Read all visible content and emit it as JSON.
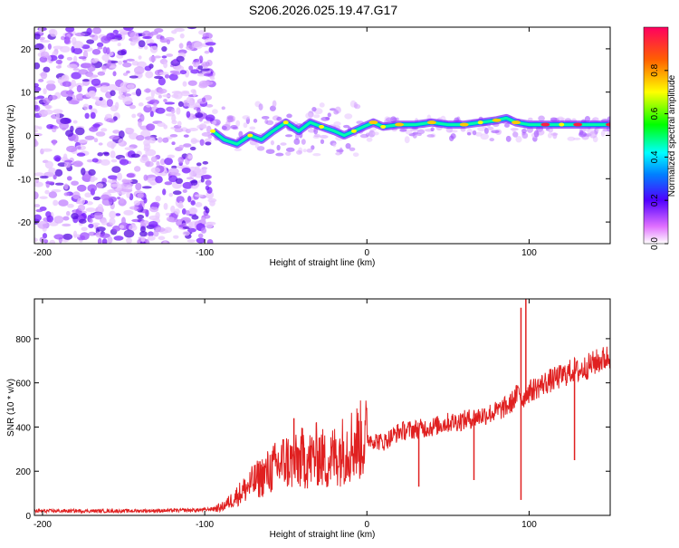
{
  "title": "S206.2026.025.19.47.G17",
  "chart_data": [
    {
      "type": "heatmap",
      "title": "S206.2026.025.19.47.G17",
      "xlabel": "Height of straight line (km)",
      "ylabel": "Frequency (Hz)",
      "xlim": [
        -205,
        150
      ],
      "ylim": [
        -25,
        25
      ],
      "xticks": [
        -200,
        -100,
        0,
        100
      ],
      "xtick_labels": [
        "-200",
        "-100",
        "0",
        "100"
      ],
      "yticks": [
        -20,
        -10,
        0,
        10,
        20
      ],
      "ytick_labels": [
        "-20",
        "-10",
        "0",
        "10",
        "20"
      ],
      "noise_region_km": [
        -205,
        -95
      ],
      "signal_track": {
        "x": [
          -95,
          -88,
          -80,
          -72,
          -65,
          -58,
          -50,
          -42,
          -35,
          -28,
          -20,
          -14,
          -8,
          -2,
          4,
          10,
          20,
          30,
          40,
          50,
          60,
          70,
          80,
          86,
          92,
          100,
          110,
          120,
          130,
          140,
          150
        ],
        "y": [
          1,
          -1,
          -2,
          0,
          -1,
          1,
          3,
          1,
          3,
          2,
          1,
          0,
          1,
          2,
          3,
          2,
          2.5,
          2.5,
          3,
          2.5,
          2.5,
          3,
          3.5,
          4,
          3,
          2.5,
          2.5,
          2.5,
          2.5,
          2.5,
          2.5
        ]
      },
      "colorbar": {
        "label": "Normalized spectral amplitude",
        "range": [
          0.0,
          1.0
        ],
        "ticks": [
          0.0,
          0.2,
          0.4,
          0.6,
          0.8
        ],
        "tick_labels": [
          "0.0",
          "0.2",
          "0.4",
          "0.6",
          "0.8"
        ]
      }
    },
    {
      "type": "line",
      "xlabel": "Height of straight line (km)",
      "ylabel": "SNR (10 * v/v)",
      "xlim": [
        -205,
        150
      ],
      "ylim": [
        0,
        980
      ],
      "xticks": [
        -200,
        -100,
        0,
        100
      ],
      "xtick_labels": [
        "-200",
        "-100",
        "0",
        "100"
      ],
      "yticks": [
        0,
        200,
        400,
        600,
        800
      ],
      "ytick_labels": [
        "0",
        "200",
        "400",
        "600",
        "800"
      ],
      "series": [
        {
          "name": "SNR",
          "color": "#e02020",
          "x": [
            -205,
            -180,
            -150,
            -120,
            -100,
            -90,
            -85,
            -80,
            -70,
            -60,
            -50,
            -45,
            -40,
            -35,
            -30,
            -25,
            -20,
            -10,
            0,
            10,
            20,
            30,
            40,
            50,
            60,
            70,
            80,
            88,
            92,
            94,
            96,
            98,
            100,
            110,
            120,
            128,
            130,
            140,
            150
          ],
          "values": [
            20,
            20,
            20,
            22,
            25,
            35,
            60,
            90,
            150,
            200,
            250,
            230,
            260,
            250,
            280,
            240,
            270,
            320,
            350,
            330,
            380,
            390,
            400,
            420,
            430,
            450,
            470,
            500,
            540,
            560,
            520,
            560,
            560,
            600,
            630,
            660,
            650,
            690,
            720
          ]
        }
      ],
      "spikes": [
        {
          "x": -45,
          "values": [
            440
          ]
        },
        {
          "x": 32,
          "values": [
            130
          ]
        },
        {
          "x": 66,
          "values": [
            160
          ]
        },
        {
          "x": 95,
          "values": [
            940,
            70
          ]
        },
        {
          "x": 98,
          "values": [
            980
          ]
        },
        {
          "x": 128,
          "values": [
            250
          ]
        }
      ]
    }
  ]
}
